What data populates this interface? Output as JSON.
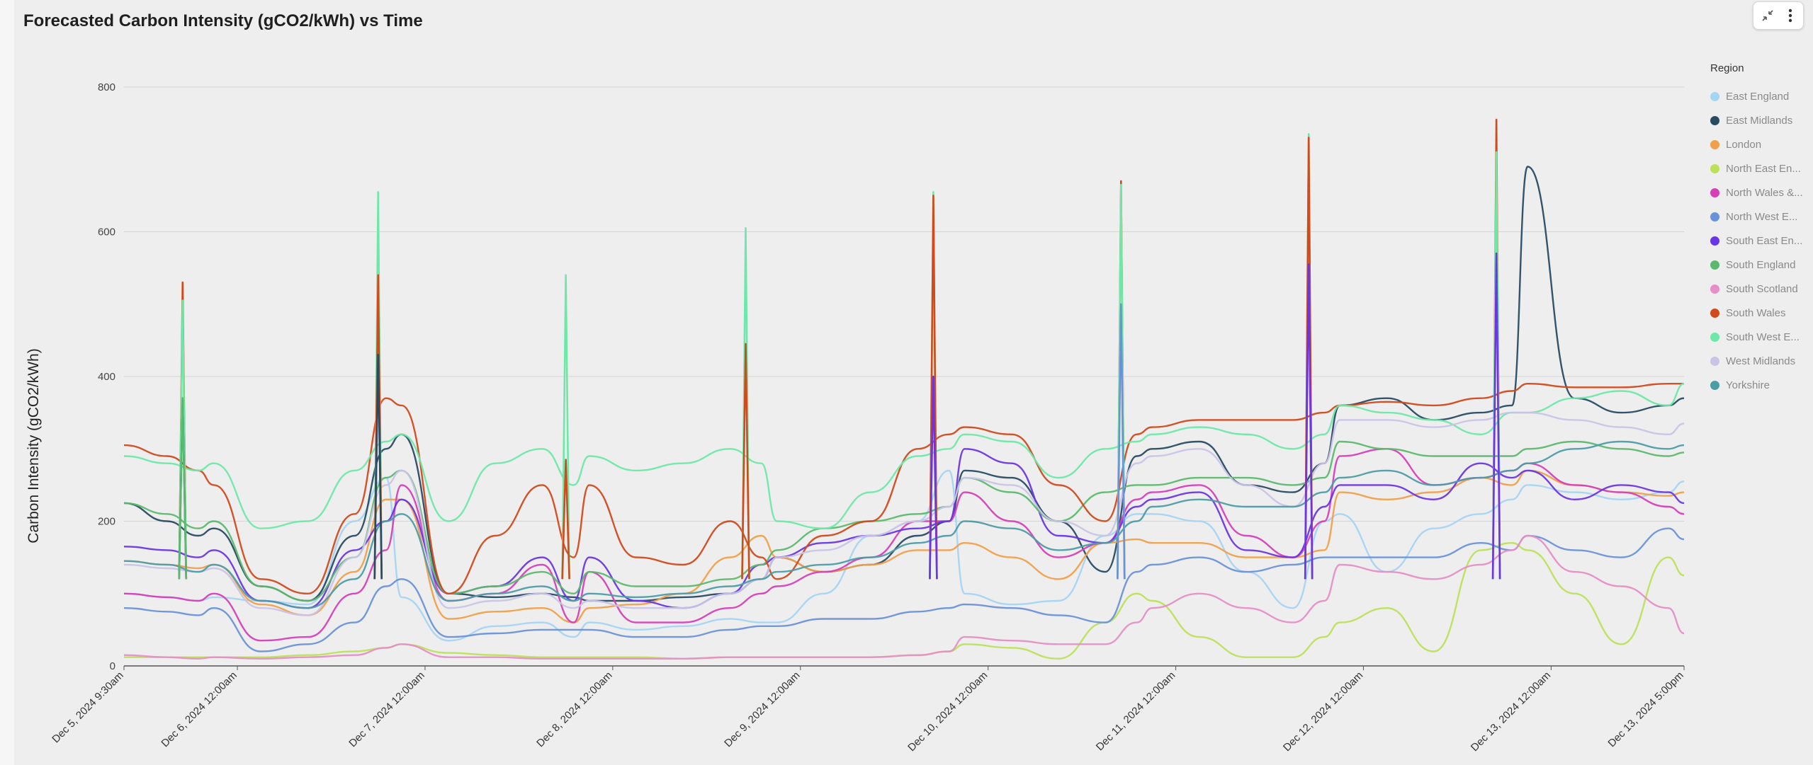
{
  "header": {
    "title": "Forecasted Carbon Intensity (gCO2/kWh) vs Time"
  },
  "toolbar": {
    "collapse_icon": "collapse-arrows-icon",
    "menu_icon": "vertical-dots-icon"
  },
  "chart_data": {
    "type": "line",
    "title": "Forecasted Carbon Intensity (gCO2/kWh) vs Time",
    "xlabel": "",
    "ylabel": "Carbon Intensity (gCO2/kWh)",
    "ylim": [
      0,
      800
    ],
    "yticks": [
      0,
      200,
      400,
      600,
      800
    ],
    "grid": true,
    "legend_title": "Region",
    "legend_position": "right",
    "x_range": [
      "2024-12-05T09:30",
      "2024-12-13T17:00"
    ],
    "x_tick_labels": [
      {
        "x": "2024-12-05T09:30",
        "label": "Dec 5, 2024 9:30am"
      },
      {
        "x": "2024-12-06T00:00",
        "label": "Dec 6, 2024 12:00am"
      },
      {
        "x": "2024-12-07T00:00",
        "label": "Dec 7, 2024 12:00am"
      },
      {
        "x": "2024-12-08T00:00",
        "label": "Dec 8, 2024 12:00am"
      },
      {
        "x": "2024-12-09T00:00",
        "label": "Dec 9, 2024 12:00am"
      },
      {
        "x": "2024-12-10T00:00",
        "label": "Dec 10, 2024 12:00am"
      },
      {
        "x": "2024-12-11T00:00",
        "label": "Dec 11, 2024 12:00am"
      },
      {
        "x": "2024-12-12T00:00",
        "label": "Dec 12, 2024 12:00am"
      },
      {
        "x": "2024-12-13T00:00",
        "label": "Dec 13, 2024 12:00am"
      },
      {
        "x": "2024-12-13T17:00",
        "label": "Dec 13, 2024 5:00pm"
      }
    ],
    "x": [
      "2024-12-05T09:30",
      "2024-12-05T15:00",
      "2024-12-05T19:00",
      "2024-12-05T21:00",
      "2024-12-06T03:00",
      "2024-12-06T09:00",
      "2024-12-06T15:00",
      "2024-12-06T19:00",
      "2024-12-06T21:00",
      "2024-12-07T03:00",
      "2024-12-07T09:00",
      "2024-12-07T15:00",
      "2024-12-07T19:00",
      "2024-12-07T21:00",
      "2024-12-08T03:00",
      "2024-12-08T09:00",
      "2024-12-08T15:00",
      "2024-12-08T19:00",
      "2024-12-08T21:00",
      "2024-12-09T03:00",
      "2024-12-09T09:00",
      "2024-12-09T15:00",
      "2024-12-09T19:00",
      "2024-12-09T21:00",
      "2024-12-10T03:00",
      "2024-12-10T09:00",
      "2024-12-10T15:00",
      "2024-12-10T19:00",
      "2024-12-10T21:00",
      "2024-12-11T03:00",
      "2024-12-11T09:00",
      "2024-12-11T15:00",
      "2024-12-11T19:00",
      "2024-12-11T21:00",
      "2024-12-12T03:00",
      "2024-12-12T09:00",
      "2024-12-12T15:00",
      "2024-12-12T19:00",
      "2024-12-12T21:00",
      "2024-12-13T03:00",
      "2024-12-13T09:00",
      "2024-12-13T15:00",
      "2024-12-13T17:00"
    ],
    "series": [
      {
        "name": "East England",
        "color": "#a7d4f2",
        "values": [
          100,
          95,
          90,
          95,
          90,
          85,
          200,
          260,
          95,
          35,
          55,
          60,
          40,
          60,
          50,
          55,
          65,
          60,
          60,
          100,
          180,
          200,
          270,
          100,
          85,
          90,
          180,
          210,
          210,
          200,
          130,
          80,
          200,
          210,
          130,
          190,
          210,
          230,
          250,
          240,
          230,
          240,
          255
        ]
      },
      {
        "name": "East Midlands",
        "color": "#284b63",
        "values": [
          225,
          200,
          180,
          190,
          110,
          90,
          180,
          300,
          320,
          100,
          95,
          100,
          95,
          90,
          90,
          95,
          100,
          120,
          150,
          130,
          140,
          180,
          200,
          270,
          260,
          200,
          130,
          290,
          300,
          310,
          250,
          240,
          280,
          360,
          370,
          340,
          350,
          360,
          690,
          370,
          350,
          360,
          370
        ]
      },
      {
        "name": "London",
        "color": "#f0a04b",
        "values": [
          145,
          140,
          135,
          140,
          85,
          70,
          130,
          230,
          230,
          65,
          75,
          80,
          60,
          80,
          85,
          100,
          150,
          180,
          150,
          130,
          140,
          160,
          160,
          170,
          150,
          120,
          170,
          175,
          170,
          170,
          150,
          150,
          160,
          240,
          230,
          240,
          260,
          250,
          270,
          250,
          240,
          235,
          240
        ]
      },
      {
        "name": "North East En...",
        "color": "#bde05b",
        "values": [
          12,
          12,
          12,
          12,
          12,
          15,
          20,
          25,
          30,
          18,
          15,
          12,
          12,
          12,
          12,
          10,
          12,
          12,
          12,
          12,
          12,
          15,
          20,
          30,
          25,
          10,
          60,
          100,
          90,
          40,
          12,
          12,
          40,
          60,
          80,
          20,
          160,
          170,
          160,
          100,
          30,
          150,
          125
        ]
      },
      {
        "name": "North Wales &...",
        "color": "#d63fb8",
        "values": [
          100,
          95,
          90,
          100,
          35,
          40,
          100,
          160,
          250,
          90,
          100,
          140,
          60,
          130,
          60,
          60,
          80,
          100,
          110,
          130,
          150,
          200,
          200,
          240,
          200,
          150,
          170,
          230,
          240,
          250,
          180,
          150,
          200,
          290,
          300,
          250,
          260,
          270,
          280,
          250,
          240,
          220,
          210
        ]
      },
      {
        "name": "North West E...",
        "color": "#6a92d8",
        "values": [
          80,
          75,
          70,
          80,
          20,
          30,
          60,
          110,
          120,
          40,
          45,
          50,
          50,
          50,
          40,
          40,
          50,
          55,
          55,
          65,
          65,
          75,
          80,
          85,
          80,
          70,
          60,
          130,
          140,
          150,
          130,
          140,
          150,
          150,
          150,
          150,
          170,
          160,
          180,
          160,
          150,
          190,
          175
        ]
      },
      {
        "name": "South East En...",
        "color": "#6a36e4",
        "values": [
          165,
          160,
          150,
          160,
          90,
          80,
          160,
          200,
          230,
          100,
          110,
          150,
          90,
          150,
          90,
          80,
          100,
          140,
          150,
          170,
          180,
          190,
          200,
          300,
          280,
          180,
          170,
          220,
          230,
          240,
          160,
          150,
          220,
          250,
          250,
          230,
          280,
          260,
          270,
          230,
          250,
          240,
          225
        ]
      },
      {
        "name": "South England",
        "color": "#5cb86e",
        "values": [
          225,
          210,
          190,
          200,
          110,
          90,
          150,
          260,
          270,
          100,
          110,
          130,
          100,
          130,
          110,
          110,
          120,
          140,
          160,
          190,
          200,
          210,
          220,
          260,
          240,
          200,
          240,
          250,
          250,
          260,
          260,
          250,
          260,
          310,
          300,
          290,
          290,
          290,
          300,
          310,
          300,
          290,
          295
        ]
      },
      {
        "name": "South Scotland",
        "color": "#e58fc6",
        "values": [
          15,
          12,
          10,
          12,
          10,
          12,
          15,
          25,
          30,
          12,
          12,
          10,
          10,
          10,
          10,
          10,
          12,
          12,
          12,
          12,
          12,
          15,
          20,
          40,
          35,
          30,
          30,
          60,
          80,
          100,
          80,
          60,
          90,
          140,
          130,
          120,
          140,
          160,
          180,
          130,
          110,
          80,
          45
        ]
      },
      {
        "name": "South Wales",
        "color": "#d04a1c",
        "values": [
          305,
          290,
          270,
          250,
          120,
          100,
          210,
          370,
          360,
          100,
          180,
          250,
          150,
          250,
          150,
          140,
          200,
          150,
          120,
          180,
          200,
          300,
          320,
          330,
          320,
          250,
          200,
          320,
          330,
          340,
          340,
          340,
          350,
          360,
          365,
          360,
          370,
          380,
          390,
          385,
          385,
          390,
          390
        ]
      },
      {
        "name": "South West E...",
        "color": "#6ee8a8",
        "values": [
          290,
          280,
          270,
          280,
          190,
          200,
          270,
          310,
          320,
          200,
          280,
          300,
          250,
          290,
          270,
          280,
          300,
          280,
          200,
          190,
          240,
          290,
          300,
          320,
          310,
          260,
          300,
          310,
          320,
          330,
          320,
          300,
          320,
          360,
          350,
          340,
          320,
          350,
          350,
          370,
          380,
          360,
          390
        ]
      },
      {
        "name": "West Midlands",
        "color": "#c9c3e6",
        "values": [
          140,
          135,
          130,
          135,
          80,
          70,
          150,
          250,
          270,
          80,
          90,
          100,
          80,
          90,
          80,
          80,
          100,
          120,
          150,
          160,
          180,
          200,
          220,
          260,
          250,
          200,
          180,
          280,
          290,
          300,
          250,
          220,
          280,
          340,
          340,
          330,
          340,
          350,
          350,
          340,
          330,
          320,
          335
        ]
      },
      {
        "name": "Yorkshire",
        "color": "#4e9ca6",
        "values": [
          145,
          140,
          130,
          140,
          90,
          80,
          120,
          200,
          210,
          90,
          100,
          110,
          90,
          100,
          95,
          100,
          110,
          120,
          130,
          140,
          150,
          170,
          180,
          200,
          190,
          160,
          170,
          200,
          220,
          230,
          220,
          220,
          240,
          260,
          270,
          250,
          260,
          270,
          280,
          300,
          310,
          300,
          305
        ]
      }
    ],
    "spikes": [
      {
        "x": "2024-12-05T17:00",
        "values": {
          "South Wales": 530,
          "South West E...": 505,
          "East Midlands": 370,
          "South England": 370
        }
      },
      {
        "x": "2024-12-06T18:00",
        "values": {
          "South West E...": 655,
          "South Wales": 540,
          "East Midlands": 430
        }
      },
      {
        "x": "2024-12-07T18:00",
        "values": {
          "South West E...": 540,
          "South Wales": 285
        }
      },
      {
        "x": "2024-12-08T17:00",
        "values": {
          "South West E...": 605,
          "South Wales": 445
        }
      },
      {
        "x": "2024-12-09T17:00",
        "values": {
          "South West E...": 655,
          "South Wales": 650,
          "South East En...": 400
        }
      },
      {
        "x": "2024-12-10T17:00",
        "values": {
          "South Wales": 670,
          "South West E...": 665,
          "North West E...": 500
        }
      },
      {
        "x": "2024-12-11T17:00",
        "values": {
          "South West E...": 735,
          "South Wales": 730,
          "South East En...": 555
        }
      },
      {
        "x": "2024-12-12T17:00",
        "values": {
          "South Wales": 755,
          "South West E...": 710,
          "South East En...": 570
        }
      }
    ]
  }
}
